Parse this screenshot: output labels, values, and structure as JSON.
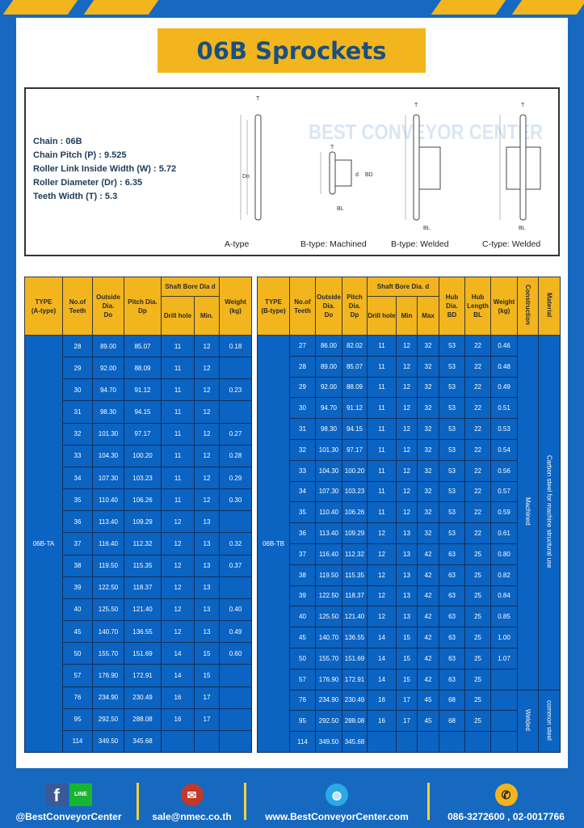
{
  "title": "06B Sprockets",
  "specs": [
    "Chain  : 06B",
    "Chain Pitch (P)  :  9.525",
    "Roller Link Inside Width (W)  :  5.72",
    "Roller Diameter (Dr)  : 6.35",
    "Teeth Width (T)  :  5.3"
  ],
  "diagram_captions": [
    "A-type",
    "B-type: Machined",
    "B-type: Welded",
    "C-type: Welded"
  ],
  "diagram_labels": {
    "T": "T",
    "Do": "Do",
    "Dp": "Dp",
    "d": "d",
    "BD": "BD",
    "BL": "BL"
  },
  "watermark": "BEST CONVEYOR CENTER",
  "table_a": {
    "headers": {
      "type": "TYPE",
      "type_sub": "(A-type)",
      "teeth": "No.of",
      "teeth_sub": "Teeth",
      "od": "Outside",
      "od_sub": "Dia.",
      "od_sub2": "Do",
      "pd": "Pitch Dia.",
      "pd_sub": "Dp",
      "bore": "Shaft Bore Dia d",
      "drill": "Drill hole",
      "min": "Min.",
      "weight": "Weight",
      "weight_sub": "(kg)"
    },
    "type_value": "06B-TA",
    "rows": [
      [
        "28",
        "89.00",
        "85.07",
        "11",
        "12",
        "0.18"
      ],
      [
        "29",
        "92.00",
        "88.09",
        "11",
        "12",
        ""
      ],
      [
        "30",
        "94.70",
        "91.12",
        "11",
        "12",
        "0.23"
      ],
      [
        "31",
        "98.30",
        "94.15",
        "11",
        "12",
        ""
      ],
      [
        "32",
        "101.30",
        "97.17",
        "11",
        "12",
        "0.27"
      ],
      [
        "33",
        "104.30",
        "100.20",
        "11",
        "12",
        "0.28"
      ],
      [
        "34",
        "107.30",
        "103.23",
        "11",
        "12",
        "0.29"
      ],
      [
        "35",
        "110.40",
        "106.26",
        "11",
        "12",
        "0.30"
      ],
      [
        "36",
        "113.40",
        "109.29",
        "12",
        "13",
        ""
      ],
      [
        "37",
        "116.40",
        "112.32",
        "12",
        "13",
        "0.32"
      ],
      [
        "38",
        "119.50",
        "115.35",
        "12",
        "13",
        "0.37"
      ],
      [
        "39",
        "122.50",
        "118.37",
        "12",
        "13",
        ""
      ],
      [
        "40",
        "125.50",
        "121.40",
        "12",
        "13",
        "0.40"
      ],
      [
        "45",
        "140.70",
        "136.55",
        "12",
        "13",
        "0.49"
      ],
      [
        "50",
        "155.70",
        "151.69",
        "14",
        "15",
        "0.60"
      ],
      [
        "57",
        "176.90",
        "172.91",
        "14",
        "15",
        ""
      ],
      [
        "76",
        "234.90",
        "230.49",
        "16",
        "17",
        ""
      ],
      [
        "95",
        "292.50",
        "288.08",
        "16",
        "17",
        ""
      ],
      [
        "114",
        "349.50",
        "345.68",
        "",
        "",
        ""
      ]
    ]
  },
  "table_b": {
    "headers": {
      "type": "TYPE",
      "type_sub": "(B-type)",
      "teeth": "No.of",
      "teeth_sub": "Teeth",
      "od": "Outside",
      "od_sub": "Dia.",
      "od_sub2": "Do",
      "pd": "Pitch",
      "pd_sub": "Dia.",
      "pd_sub2": "Dp",
      "bore": "Shaft Bore Dia. d",
      "drill": "Drill hole",
      "min": "Min",
      "max": "Max",
      "hd": "Hub",
      "hd_sub": "Dia.",
      "hd_sub2": "BD",
      "hl": "Hub",
      "hl_sub": "Length",
      "hl_sub2": "BL",
      "weight": "Weight",
      "weight_sub": "(kg)",
      "construction": "Construction",
      "material": "Material"
    },
    "type_value": "06B-TB",
    "construction": [
      "Machined",
      "Welded"
    ],
    "material": [
      "Carbon steel for machine structural use",
      "common steel"
    ],
    "rows": [
      [
        "27",
        "86.00",
        "82.02",
        "11",
        "12",
        "32",
        "53",
        "22",
        "0.46"
      ],
      [
        "28",
        "89.00",
        "85.07",
        "11",
        "12",
        "32",
        "53",
        "22",
        "0.48"
      ],
      [
        "29",
        "92.00",
        "88.09",
        "11",
        "12",
        "32",
        "53",
        "22",
        "0.49"
      ],
      [
        "30",
        "94.70",
        "91.12",
        "11",
        "12",
        "32",
        "53",
        "22",
        "0.51"
      ],
      [
        "31",
        "98.30",
        "94.15",
        "11",
        "12",
        "32",
        "53",
        "22",
        "0.53"
      ],
      [
        "32",
        "101.30",
        "97.17",
        "11",
        "12",
        "32",
        "53",
        "22",
        "0.54"
      ],
      [
        "33",
        "104.30",
        "100.20",
        "11",
        "12",
        "32",
        "53",
        "22",
        "0.56"
      ],
      [
        "34",
        "107.30",
        "103.23",
        "11",
        "12",
        "32",
        "53",
        "22",
        "0.57"
      ],
      [
        "35",
        "110.40",
        "106.26",
        "11",
        "12",
        "32",
        "53",
        "22",
        "0.59"
      ],
      [
        "36",
        "113.40",
        "109.29",
        "12",
        "13",
        "32",
        "53",
        "22",
        "0.61"
      ],
      [
        "37",
        "116.40",
        "112.32",
        "12",
        "13",
        "42",
        "63",
        "25",
        "0.80"
      ],
      [
        "38",
        "119.50",
        "115.35",
        "12",
        "13",
        "42",
        "63",
        "25",
        "0.82"
      ],
      [
        "39",
        "122.50",
        "118.37",
        "12",
        "13",
        "42",
        "63",
        "25",
        "0.84"
      ],
      [
        "40",
        "125.50",
        "121.40",
        "12",
        "13",
        "42",
        "63",
        "25",
        "0.85"
      ],
      [
        "45",
        "140.70",
        "136.55",
        "14",
        "15",
        "42",
        "63",
        "25",
        "1.00"
      ],
      [
        "50",
        "155.70",
        "151.69",
        "14",
        "15",
        "42",
        "63",
        "25",
        "1.07"
      ],
      [
        "57",
        "176.90",
        "172.91",
        "14",
        "15",
        "42",
        "63",
        "25",
        ""
      ],
      [
        "76",
        "234.90",
        "230.49",
        "16",
        "17",
        "45",
        "68",
        "25",
        ""
      ],
      [
        "95",
        "292.50",
        "288.08",
        "16",
        "17",
        "45",
        "68",
        "25",
        ""
      ],
      [
        "114",
        "349.50",
        "345.68",
        "",
        "",
        "",
        "",
        "",
        ""
      ]
    ]
  },
  "footer": {
    "social": "@BestConveyorCenter",
    "line_icon_text": "LINE",
    "email": "sale@nmec.co.th",
    "website": "www.BestConveyorCenter.com",
    "phone": "086-3272600 , 02-0017766"
  },
  "colors": {
    "blue": "#1769c0",
    "yellow": "#f2b51d",
    "table_blue": "#0b63c2"
  }
}
